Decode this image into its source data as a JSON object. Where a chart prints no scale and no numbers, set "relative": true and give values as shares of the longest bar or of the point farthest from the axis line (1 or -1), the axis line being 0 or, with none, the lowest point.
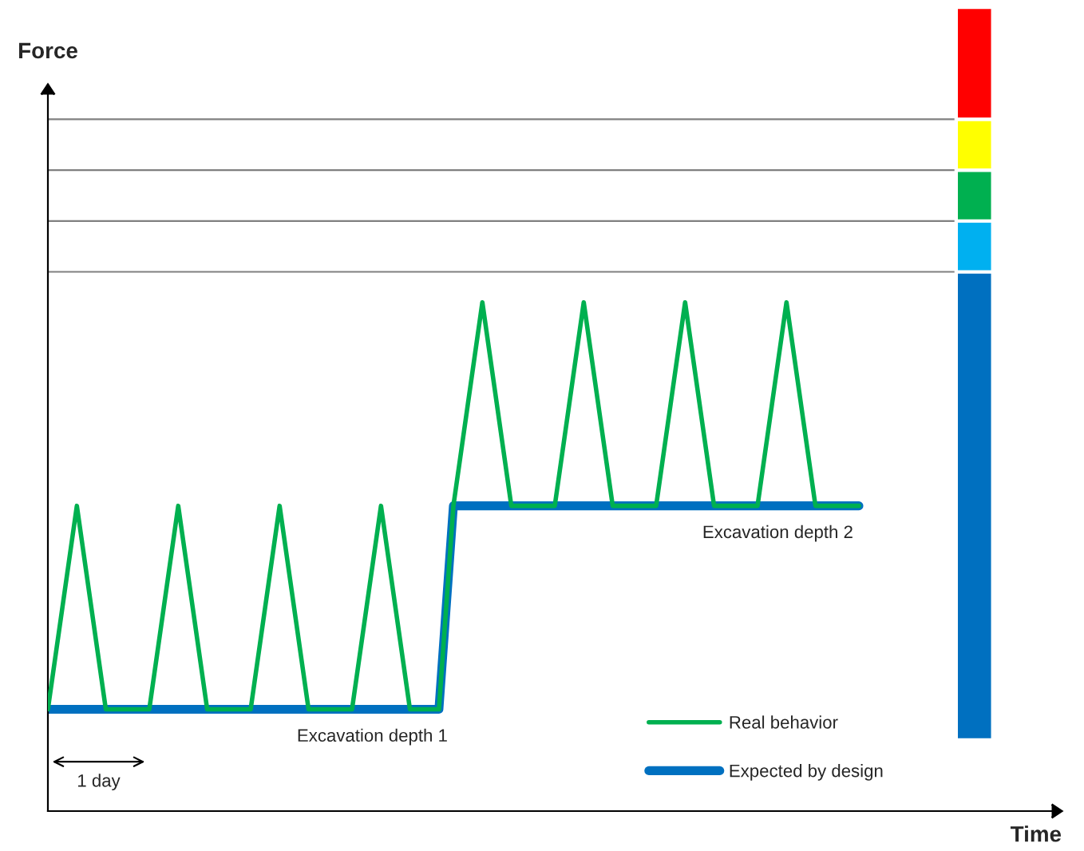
{
  "chart_data": {
    "type": "line",
    "relative": true,
    "categories": [
      null,
      null,
      null,
      null,
      null,
      null,
      null,
      null,
      null,
      null,
      null,
      null,
      null,
      null,
      null,
      null,
      null,
      null,
      null,
      null,
      null,
      null,
      null,
      null,
      null,
      null,
      null,
      null,
      null,
      null,
      null,
      null,
      null,
      null,
      null,
      null,
      null,
      null,
      null,
      null,
      null,
      null,
      null,
      null,
      null,
      null,
      null,
      null,
      null,
      null,
      null,
      null,
      null,
      null,
      null,
      null,
      null
    ],
    "series": [
      {
        "name": "Real behavior",
        "color": "#00b050",
        "values": [
          0.2,
          0.4,
          0.6,
          0.4,
          0.2,
          0.2,
          0.2,
          0.2,
          0.4,
          0.6,
          0.4,
          0.2,
          0.2,
          0.2,
          0.2,
          0.4,
          0.6,
          0.4,
          0.2,
          0.2,
          0.2,
          0.2,
          0.4,
          0.6,
          0.4,
          0.2,
          0.2,
          0.2,
          0.6,
          0.8,
          1,
          0.8,
          0.6,
          0.6,
          0.6,
          0.6,
          0.8,
          1,
          0.8,
          0.6,
          0.6,
          0.6,
          0.6,
          0.8,
          1,
          0.8,
          0.6,
          0.6,
          0.6,
          0.6,
          0.8,
          1,
          0.8,
          0.6,
          0.6,
          0.6,
          0.6
        ]
      },
      {
        "name": "Expected by design",
        "color": "#0070c0",
        "values": [
          0.2,
          0.2,
          0.2,
          0.2,
          0.2,
          0.2,
          0.2,
          0.2,
          0.2,
          0.2,
          0.2,
          0.2,
          0.2,
          0.2,
          0.2,
          0.2,
          0.2,
          0.2,
          0.2,
          0.2,
          0.2,
          0.2,
          0.2,
          0.2,
          0.2,
          0.2,
          0.2,
          0.2,
          0.6,
          0.6,
          0.6,
          0.6,
          0.6,
          0.6,
          0.6,
          0.6,
          0.6,
          0.6,
          0.6,
          0.6,
          0.6,
          0.6,
          0.6,
          0.6,
          0.6,
          0.6,
          0.6,
          0.6,
          0.6,
          0.6,
          0.6,
          0.6,
          0.6,
          0.6,
          0.6,
          0.6,
          0.6
        ]
      }
    ],
    "annotations": [
      "Excavation depth 1",
      "Excavation depth 2",
      "1 day",
      "Force",
      "Time"
    ],
    "ref_lines": [
      {
        "axis": "y",
        "value": 1.06,
        "color": "#808080"
      },
      {
        "axis": "y",
        "value": 1.16,
        "color": "#808080"
      },
      {
        "axis": "y",
        "value": 1.26,
        "color": "#808080"
      },
      {
        "axis": "y",
        "value": 1.36,
        "color": "#808080"
      }
    ],
    "legend": "bottom right",
    "marker": "none",
    "line_style": "solid"
  }
}
